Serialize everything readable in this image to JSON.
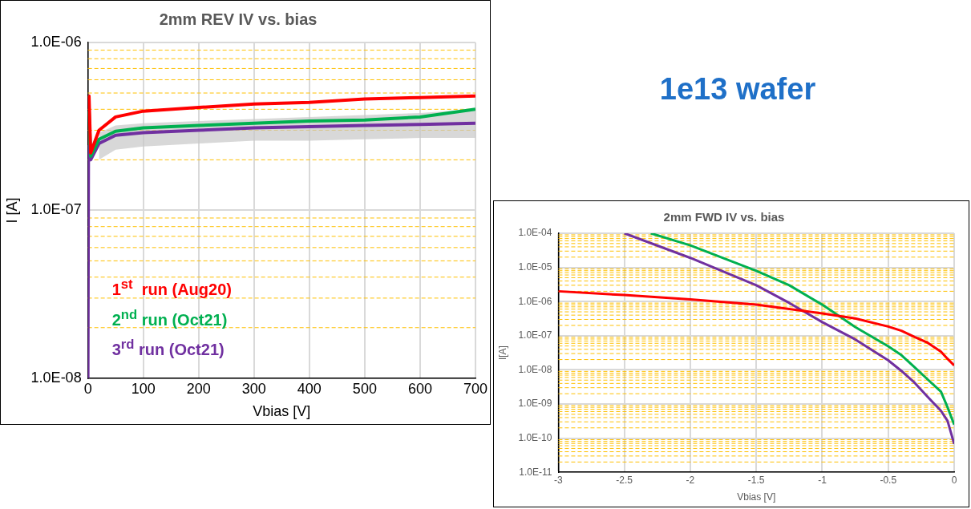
{
  "chart_data": [
    {
      "type": "line",
      "title": "2mm REV IV vs. bias",
      "xlabel": "Vbias [V]",
      "ylabel": "I [A]",
      "log": "y",
      "grid": true,
      "legend": "bottom left",
      "xlim": [
        0,
        700
      ],
      "xticks": [
        0,
        100,
        200,
        300,
        400,
        500,
        600,
        700
      ],
      "ylim": [
        1e-08,
        1e-06
      ],
      "yticks": [
        {
          "value": 1e-08,
          "label": "1.0E-08"
        },
        {
          "value": 2e-08,
          "label": null
        },
        {
          "value": 3e-08,
          "label": null
        },
        {
          "value": 4e-08,
          "label": null
        },
        {
          "value": 5e-08,
          "label": null
        },
        {
          "value": 6e-08,
          "label": null
        },
        {
          "value": 7e-08,
          "label": null
        },
        {
          "value": 8e-08,
          "label": null
        },
        {
          "value": 9e-08,
          "label": null
        },
        {
          "value": 1e-07,
          "label": "1.0E-07"
        },
        {
          "value": 2e-07,
          "label": null
        },
        {
          "value": 3e-07,
          "label": null
        },
        {
          "value": 4e-07,
          "label": null
        },
        {
          "value": 5e-07,
          "label": null
        },
        {
          "value": 6e-07,
          "label": null
        },
        {
          "value": 7e-07,
          "label": null
        },
        {
          "value": 8e-07,
          "label": null
        },
        {
          "value": 9e-07,
          "label": null
        },
        {
          "value": 1e-06,
          "label": "1.0E-06"
        }
      ],
      "series": [
        {
          "name": "1$^{st}$  run (Aug20)",
          "color": "#ff0000",
          "x": [
            1,
            2,
            5,
            20,
            50,
            100,
            200,
            300,
            400,
            500,
            600,
            700
          ],
          "values": [
            4.8e-07,
            4.8e-07,
            2.2e-07,
            3e-07,
            3.6e-07,
            3.9e-07,
            4.1e-07,
            4.3e-07,
            4.4e-07,
            4.6e-07,
            4.7e-07,
            4.8e-07
          ]
        },
        {
          "name": "2$^{nd}$ run (Oct21)",
          "color": "#00b050",
          "x": [
            1,
            2,
            5,
            20,
            50,
            100,
            200,
            300,
            400,
            500,
            600,
            700
          ],
          "values": [
            3.9e-07,
            3.9e-07,
            2.1e-07,
            2.65e-07,
            2.96e-07,
            3.1e-07,
            3.2e-07,
            3.3e-07,
            3.4e-07,
            3.45e-07,
            3.6e-07,
            4e-07
          ]
        },
        {
          "name": "3$^{rd}$ run (Oct21)",
          "color": "#7030a0",
          "x": [
            0,
            1,
            2,
            5,
            20,
            50,
            100,
            200,
            300,
            400,
            500,
            600,
            700
          ],
          "values": [
            1e-08,
            2.4e-07,
            2.4e-07,
            2e-07,
            2.5e-07,
            2.8e-07,
            2.9e-07,
            3e-07,
            3.1e-07,
            3.15e-07,
            3.2e-07,
            3.25e-07,
            3.3e-07
          ],
          "lower": [
            null,
            null,
            null,
            null,
            2e-07,
            2.3e-07,
            2.4e-07,
            2.5e-07,
            2.6e-07,
            2.6e-07,
            2.65e-07,
            2.7e-07,
            2.7e-07
          ],
          "upper": [
            null,
            null,
            null,
            null,
            2.9e-07,
            3.2e-07,
            3.3e-07,
            3.4e-07,
            3.5e-07,
            3.6e-07,
            3.7e-07,
            3.8e-07,
            4e-07
          ]
        }
      ]
    },
    {
      "type": "other",
      "title": "1e13 wafer"
    },
    {
      "type": "line",
      "title": "2mm FWD IV vs. bias",
      "xlabel": "Vbias [V]",
      "ylabel": "I[A]",
      "log": "y",
      "grid": true,
      "xlim": [
        -3,
        0
      ],
      "xticks": [
        -3,
        -2.5,
        -2,
        -1.5,
        -1,
        -0.5,
        0
      ],
      "ylim": [
        1e-11,
        0.0001
      ],
      "yticks": [
        {
          "value": 1e-11,
          "label": "1.0E-11"
        },
        {
          "value": 2e-11,
          "label": null
        },
        {
          "value": 3e-11,
          "label": null
        },
        {
          "value": 4e-11,
          "label": null
        },
        {
          "value": 5e-11,
          "label": null
        },
        {
          "value": 6e-11,
          "label": null
        },
        {
          "value": 7e-11,
          "label": null
        },
        {
          "value": 8e-11,
          "label": null
        },
        {
          "value": 9e-11,
          "label": null
        },
        {
          "value": 1e-10,
          "label": "1.0E-10"
        },
        {
          "value": 2e-10,
          "label": null
        },
        {
          "value": 3e-10,
          "label": null
        },
        {
          "value": 4e-10,
          "label": null
        },
        {
          "value": 5e-10,
          "label": null
        },
        {
          "value": 6e-10,
          "label": null
        },
        {
          "value": 7e-10,
          "label": null
        },
        {
          "value": 8e-10,
          "label": null
        },
        {
          "value": 9e-10,
          "label": null
        },
        {
          "value": 1e-09,
          "label": "1.0E-09"
        },
        {
          "value": 2e-09,
          "label": null
        },
        {
          "value": 3e-09,
          "label": null
        },
        {
          "value": 4e-09,
          "label": null
        },
        {
          "value": 5e-09,
          "label": null
        },
        {
          "value": 6e-09,
          "label": null
        },
        {
          "value": 7e-09,
          "label": null
        },
        {
          "value": 8e-09,
          "label": null
        },
        {
          "value": 9e-09,
          "label": null
        },
        {
          "value": 1e-08,
          "label": "1.0E-08"
        },
        {
          "value": 2e-08,
          "label": null
        },
        {
          "value": 3e-08,
          "label": null
        },
        {
          "value": 4e-08,
          "label": null
        },
        {
          "value": 5e-08,
          "label": null
        },
        {
          "value": 6e-08,
          "label": null
        },
        {
          "value": 7e-08,
          "label": null
        },
        {
          "value": 8e-08,
          "label": null
        },
        {
          "value": 9e-08,
          "label": null
        },
        {
          "value": 1e-07,
          "label": "1.0E-07"
        },
        {
          "value": 2e-07,
          "label": null
        },
        {
          "value": 3e-07,
          "label": null
        },
        {
          "value": 4e-07,
          "label": null
        },
        {
          "value": 5e-07,
          "label": null
        },
        {
          "value": 6e-07,
          "label": null
        },
        {
          "value": 7e-07,
          "label": null
        },
        {
          "value": 8e-07,
          "label": null
        },
        {
          "value": 9e-07,
          "label": null
        },
        {
          "value": 1e-06,
          "label": "1.0E-06"
        },
        {
          "value": 2e-06,
          "label": null
        },
        {
          "value": 3e-06,
          "label": null
        },
        {
          "value": 4e-06,
          "label": null
        },
        {
          "value": 5e-06,
          "label": null
        },
        {
          "value": 6e-06,
          "label": null
        },
        {
          "value": 7e-06,
          "label": null
        },
        {
          "value": 8e-06,
          "label": null
        },
        {
          "value": 9e-06,
          "label": null
        },
        {
          "value": 1e-05,
          "label": "1.0E-05"
        },
        {
          "value": 2e-05,
          "label": null
        },
        {
          "value": 3e-05,
          "label": null
        },
        {
          "value": 4e-05,
          "label": null
        },
        {
          "value": 5e-05,
          "label": null
        },
        {
          "value": 6e-05,
          "label": null
        },
        {
          "value": 7e-05,
          "label": null
        },
        {
          "value": 8e-05,
          "label": null
        },
        {
          "value": 9e-05,
          "label": null
        },
        {
          "value": 0.0001,
          "label": "1.0E-04"
        }
      ],
      "series": [
        {
          "color": "#ff0000",
          "x": [
            -3,
            -2.5,
            -2,
            -1.5,
            -1,
            -0.75,
            -0.5,
            -0.4,
            -0.3,
            -0.2,
            -0.1,
            -0.05,
            0
          ],
          "values": [
            2e-06,
            1.55e-06,
            1.15e-06,
            8.1e-07,
            4.5e-07,
            3.2e-07,
            1.85e-07,
            1.4e-07,
            9.2e-08,
            6.2e-08,
            3.4e-08,
            2.1e-08,
            1.35e-08
          ]
        },
        {
          "color": "#00b050",
          "x": [
            -2.3,
            -2,
            -1.5,
            -1.25,
            -1,
            -0.75,
            -0.5,
            -0.4,
            -0.3,
            -0.2,
            -0.1,
            -0.05,
            0
          ],
          "values": [
            0.0001,
            4.4e-05,
            7.9e-06,
            3e-06,
            8.1e-07,
            1.8e-07,
            4.9e-08,
            2.7e-08,
            1.2e-08,
            5.2e-09,
            2.3e-09,
            8e-10,
            2.5e-10
          ]
        },
        {
          "color": "#7030a0",
          "x": [
            -2.5,
            -2,
            -1.5,
            -1.25,
            -1,
            -0.75,
            -0.5,
            -0.4,
            -0.3,
            -0.2,
            -0.1,
            -0.05,
            0
          ],
          "values": [
            0.0001,
            1.9e-05,
            3e-06,
            9.1e-07,
            2.5e-07,
            7.8e-08,
            1.9e-08,
            9.3e-09,
            4.2e-09,
            1.6e-09,
            6.3e-10,
            3.2e-10,
            6.8e-11
          ]
        }
      ]
    }
  ]
}
